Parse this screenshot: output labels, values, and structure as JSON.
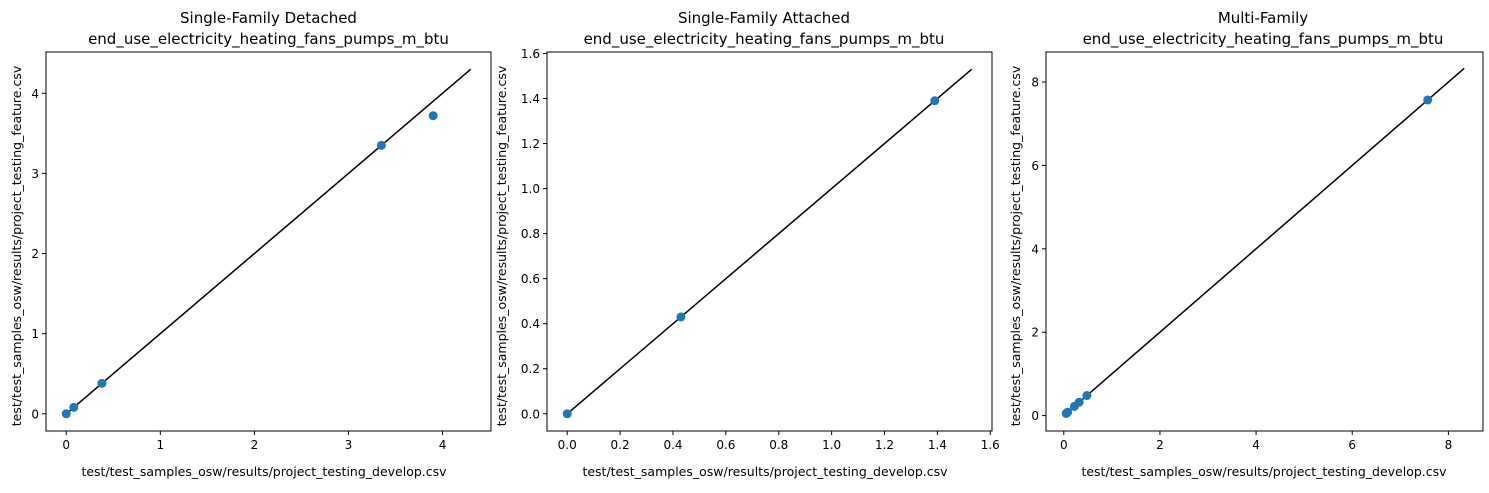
{
  "chart_data": [
    {
      "type": "scatter",
      "title": "Single-Family Detached",
      "subtitle": "end_use_electricity_heating_fans_pumps_m_btu",
      "xlabel": "test/test_samples_osw/results/project_testing_develop.csv",
      "ylabel": "test/test_samples_osw/results/project_testing_feature.csv",
      "xlim": [
        -0.215,
        4.515
      ],
      "ylim": [
        -0.215,
        4.515
      ],
      "xticks": [
        0,
        1,
        2,
        3,
        4
      ],
      "yticks": [
        0,
        1,
        2,
        3,
        4
      ],
      "tick_labels": [
        "0",
        "1",
        "2",
        "3",
        "4"
      ],
      "identity_line": [
        0,
        4.3
      ],
      "marker_color": "#1f77b4",
      "line_color": "#000000",
      "points": [
        [
          0.0,
          0.0
        ],
        [
          0.08,
          0.08
        ],
        [
          0.38,
          0.38
        ],
        [
          3.35,
          3.35
        ],
        [
          3.9,
          3.72
        ]
      ]
    },
    {
      "type": "scatter",
      "title": "Single-Family Attached",
      "subtitle": "end_use_electricity_heating_fans_pumps_m_btu",
      "xlabel": "test/test_samples_osw/results/project_testing_develop.csv",
      "ylabel": "test/test_samples_osw/results/project_testing_feature.csv",
      "xlim": [
        -0.0765,
        1.6065
      ],
      "ylim": [
        -0.0765,
        1.6065
      ],
      "xticks": [
        0,
        0.2,
        0.4,
        0.6,
        0.8,
        1.0,
        1.2,
        1.4,
        1.6
      ],
      "yticks": [
        0,
        0.2,
        0.4,
        0.6,
        0.8,
        1.0,
        1.2,
        1.4,
        1.6
      ],
      "tick_labels": [
        "0.0",
        "0.2",
        "0.4",
        "0.6",
        "0.8",
        "1.0",
        "1.2",
        "1.4",
        "1.6"
      ],
      "identity_line": [
        0,
        1.53
      ],
      "marker_color": "#1f77b4",
      "line_color": "#000000",
      "points": [
        [
          0.0,
          0.0
        ],
        [
          0.43,
          0.43
        ],
        [
          1.39,
          1.39
        ]
      ]
    },
    {
      "type": "scatter",
      "title": "Multi-Family",
      "subtitle": "end_use_electricity_heating_fans_pumps_m_btu",
      "xlabel": "test/test_samples_osw/results/project_testing_develop.csv",
      "ylabel": "test/test_samples_osw/results/project_testing_feature.csv",
      "xlim": [
        -0.37,
        8.72
      ],
      "ylim": [
        -0.37,
        8.72
      ],
      "xticks": [
        0,
        2,
        4,
        6,
        8
      ],
      "yticks": [
        0,
        2,
        4,
        6,
        8
      ],
      "tick_labels": [
        "0",
        "2",
        "4",
        "6",
        "8"
      ],
      "identity_line": [
        0.04,
        8.33
      ],
      "marker_color": "#1f77b4",
      "line_color": "#000000",
      "points": [
        [
          0.05,
          0.05
        ],
        [
          0.08,
          0.08
        ],
        [
          0.22,
          0.22
        ],
        [
          0.32,
          0.32
        ],
        [
          0.48,
          0.48
        ],
        [
          7.57,
          7.57
        ]
      ]
    }
  ]
}
